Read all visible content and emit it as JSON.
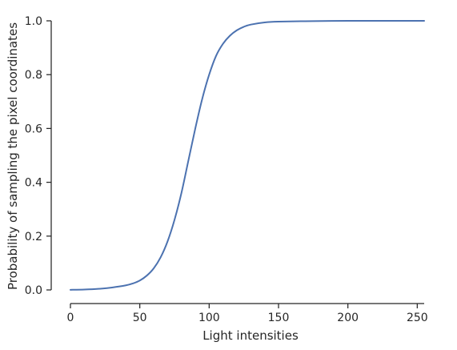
{
  "chart_data": {
    "type": "line",
    "title": "",
    "xlabel": "Light intensities",
    "ylabel": "Probability of sampling the pixel coordinates",
    "xlim": [
      0,
      255
    ],
    "ylim": [
      0,
      1
    ],
    "xticks": [
      0,
      50,
      100,
      150,
      200,
      250
    ],
    "xtick_labels": [
      "0",
      "50",
      "100",
      "150",
      "200",
      "250"
    ],
    "yticks": [
      0,
      0.2,
      0.4,
      0.6,
      0.8,
      1.0
    ],
    "ytick_labels": [
      "0.0",
      "0.2",
      "0.4",
      "0.6",
      "0.8",
      "1.0"
    ],
    "grid": false,
    "series": [
      {
        "color": "#4c72b0",
        "x": [
          0,
          10,
          20,
          30,
          40,
          45,
          50,
          55,
          60,
          65,
          70,
          75,
          80,
          85,
          90,
          95,
          100,
          105,
          110,
          115,
          120,
          125,
          130,
          140,
          150,
          175,
          200,
          225,
          255
        ],
        "y": [
          0.0005,
          0.0015,
          0.004,
          0.009,
          0.017,
          0.024,
          0.035,
          0.053,
          0.08,
          0.121,
          0.18,
          0.26,
          0.36,
          0.48,
          0.6,
          0.71,
          0.8,
          0.87,
          0.915,
          0.945,
          0.965,
          0.978,
          0.986,
          0.994,
          0.997,
          0.999,
          1.0,
          1.0,
          1.0
        ]
      }
    ]
  }
}
